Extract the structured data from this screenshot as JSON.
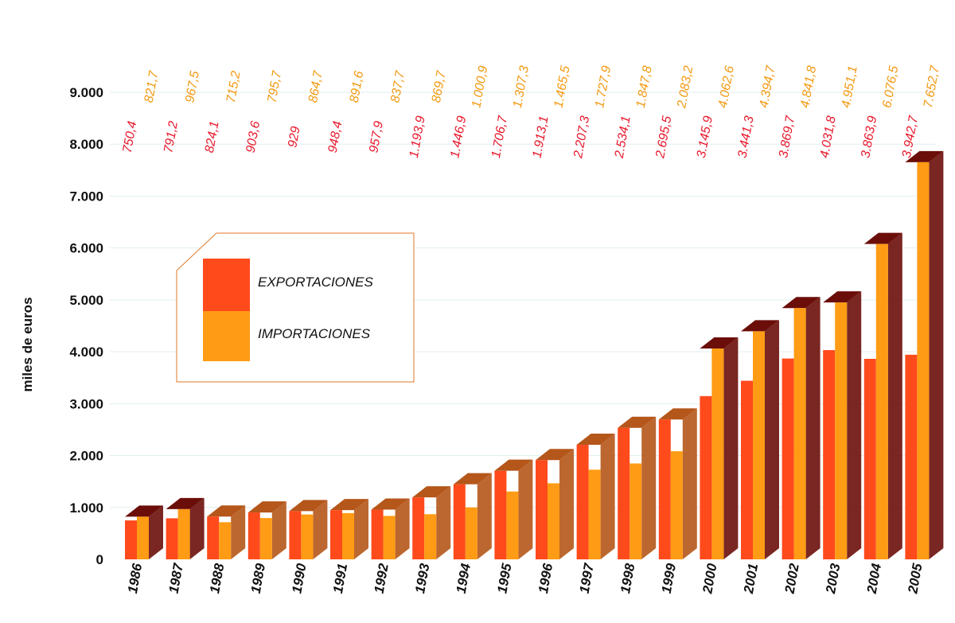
{
  "chart_data": {
    "type": "bar",
    "title": "",
    "xlabel": "",
    "ylabel": "miles de euros",
    "ylim": [
      0,
      9000
    ],
    "yticks": [
      "0",
      "1.000",
      "2.000",
      "3.000",
      "4.000",
      "5.000",
      "6.000",
      "7.000",
      "8.000",
      "9.000"
    ],
    "categories": [
      "1986",
      "1987",
      "1988",
      "1989",
      "1990",
      "1991",
      "1992",
      "1993",
      "1994",
      "1995",
      "1996",
      "1997",
      "1998",
      "1999",
      "2000",
      "2001",
      "2002",
      "2003",
      "2004",
      "2005"
    ],
    "series": [
      {
        "name": "EXPORTACIONES",
        "values": [
          750.4,
          791.2,
          824.1,
          903.6,
          929,
          948.4,
          957.9,
          1193.9,
          1446.9,
          1706.7,
          1913.1,
          2207.3,
          2534.1,
          2695.5,
          3145.9,
          3441.3,
          3869.7,
          4031.8,
          3863.9,
          3942.7
        ],
        "labels": [
          "750,4",
          "791,2",
          "824,1",
          "903,6",
          "929",
          "948,4",
          "957,9",
          "1.193,9",
          "1.446,9",
          "1.706,7",
          "1.913,1",
          "2.207,3",
          "2.534,1",
          "2.695,5",
          "3.145,9",
          "3.441,3",
          "3.869,7",
          "4.031,8",
          "3.863,9",
          "3.942,7"
        ]
      },
      {
        "name": "IMPORTACIONES",
        "values": [
          821.7,
          967.5,
          715.2,
          795.7,
          864.7,
          891.6,
          837.7,
          869.7,
          1000.9,
          1307.3,
          1465.5,
          1727.9,
          1847.8,
          2083.2,
          4062.6,
          4394.7,
          4841.8,
          4951.1,
          6076.5,
          7652.7
        ],
        "labels": [
          "821,7",
          "967,5",
          "715,2",
          "795,7",
          "864,7",
          "891,6",
          "837,7",
          "869,7",
          "1.000,9",
          "1.307,3",
          "1.465,5",
          "1.727,9",
          "1.847,8",
          "2.083,2",
          "4.062,6",
          "4.394,7",
          "4.841,8",
          "4.951,1",
          "6.076,5",
          "7.652,7"
        ]
      }
    ],
    "colors": {
      "exportaciones": "#ff4a1c",
      "importaciones": "#ff9b14",
      "balance_deficit": "#6b0e0a",
      "balance_surplus": "#b5561a",
      "exp_label": "#e8192c",
      "imp_label": "#f29a12",
      "grid": "#e0eef0",
      "legend_border": "#e07a2a"
    },
    "grid": true,
    "legend": "upper-left"
  }
}
